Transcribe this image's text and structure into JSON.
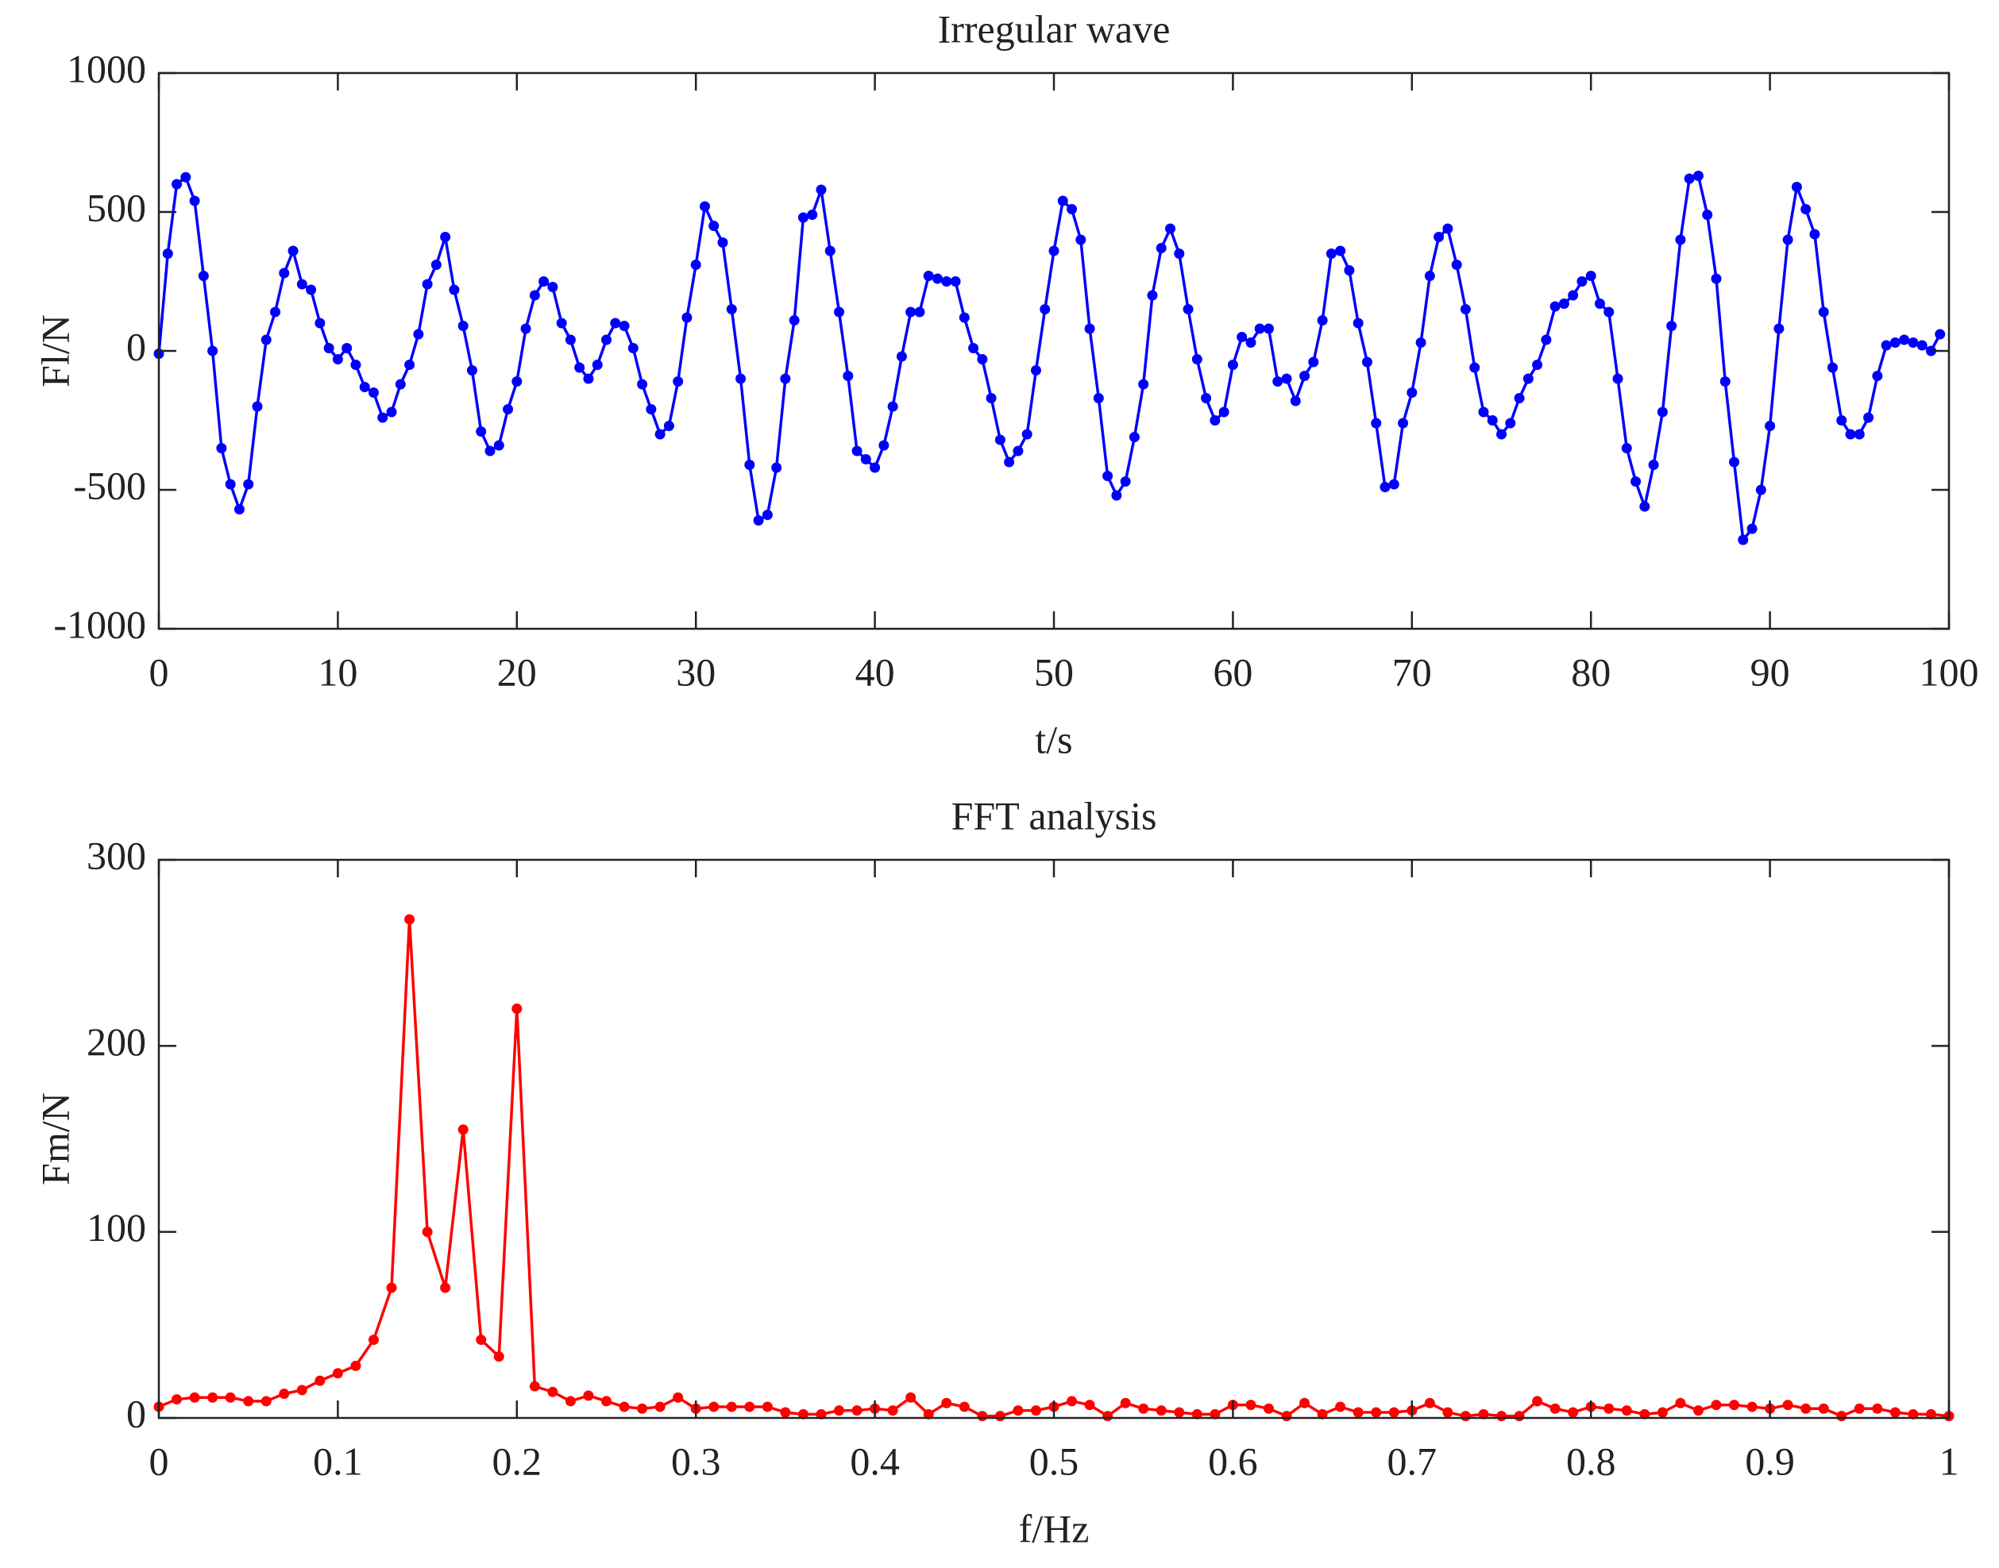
{
  "chart_data": [
    {
      "type": "line",
      "title": "Irregular wave",
      "x_label": "t/s",
      "y_label": "Fl/N",
      "xlim": [
        0,
        100
      ],
      "xticks": [
        0,
        10,
        20,
        30,
        40,
        50,
        60,
        70,
        80,
        90,
        100
      ],
      "ylim": [
        -1000,
        1000
      ],
      "yticks": [
        -1000,
        -500,
        0,
        500,
        1000
      ],
      "grid": false,
      "series": [
        {
          "color": "#0000ff",
          "x": [
            0,
            0.5,
            1,
            1.5,
            2,
            2.5,
            3,
            3.5,
            4,
            4.5,
            5,
            5.5,
            6,
            6.5,
            7,
            7.5,
            8,
            8.5,
            9,
            9.5,
            10,
            10.5,
            11,
            11.5,
            12,
            12.5,
            13,
            13.5,
            14,
            14.5,
            15,
            15.5,
            16,
            16.5,
            17,
            17.5,
            18,
            18.5,
            19,
            19.5,
            20,
            20.5,
            21,
            21.5,
            22,
            22.5,
            23,
            23.5,
            24,
            24.5,
            25,
            25.5,
            26,
            26.5,
            27,
            27.5,
            28,
            28.5,
            29,
            29.5,
            30,
            30.5,
            31,
            31.5,
            32,
            32.5,
            33,
            33.5,
            34,
            34.5,
            35,
            35.5,
            36,
            36.5,
            37,
            37.5,
            38,
            38.5,
            39,
            39.5,
            40,
            40.5,
            41,
            41.5,
            42,
            42.5,
            43,
            43.5,
            44,
            44.5,
            45,
            45.5,
            46,
            46.5,
            47,
            47.5,
            48,
            48.5,
            49,
            49.5,
            50,
            50.5,
            51,
            51.5,
            52,
            52.5,
            53,
            53.5,
            54,
            54.5,
            55,
            55.5,
            56,
            56.5,
            57,
            57.5,
            58,
            58.5,
            59,
            59.5,
            60,
            60.5,
            61,
            61.5,
            62,
            62.5,
            63,
            63.5,
            64,
            64.5,
            65,
            65.5,
            66,
            66.5,
            67,
            67.5,
            68,
            68.5,
            69,
            69.5,
            70,
            70.5,
            71,
            71.5,
            72,
            72.5,
            73,
            73.5,
            74,
            74.5,
            75,
            75.5,
            76,
            76.5,
            77,
            77.5,
            78,
            78.5,
            79,
            79.5,
            80,
            80.5,
            81,
            81.5,
            82,
            82.5,
            83,
            83.5,
            84,
            84.5,
            85,
            85.5,
            86,
            86.5,
            87,
            87.5,
            88,
            88.5,
            89,
            89.5,
            90,
            90.5,
            91,
            91.5,
            92,
            92.5,
            93,
            93.5,
            94,
            94.5,
            95,
            95.5,
            96,
            96.5,
            97,
            97.5,
            98,
            98.5,
            99,
            99.5
          ],
          "values": [
            -10,
            350,
            600,
            625,
            540,
            270,
            0,
            -350,
            -480,
            -570,
            -480,
            -200,
            40,
            140,
            280,
            360,
            240,
            220,
            100,
            10,
            -30,
            10,
            -50,
            -130,
            -150,
            -240,
            -220,
            -120,
            -50,
            60,
            240,
            310,
            410,
            220,
            90,
            -70,
            -290,
            -360,
            -340,
            -210,
            -110,
            80,
            200,
            250,
            230,
            100,
            40,
            -60,
            -100,
            -50,
            40,
            100,
            90,
            10,
            -120,
            -210,
            -300,
            -270,
            -110,
            120,
            310,
            520,
            450,
            390,
            150,
            -100,
            -410,
            -610,
            -590,
            -420,
            -100,
            110,
            480,
            490,
            580,
            360,
            140,
            -90,
            -360,
            -390,
            -420,
            -340,
            -200,
            -20,
            140,
            140,
            270,
            260,
            250,
            250,
            120,
            10,
            -30,
            -170,
            -320,
            -400,
            -360,
            -300,
            -70,
            150,
            360,
            540,
            510,
            400,
            80,
            -170,
            -450,
            -520,
            -470,
            -310,
            -120,
            200,
            370,
            440,
            350,
            150,
            -30,
            -170,
            -250,
            -220,
            -50,
            50,
            30,
            80,
            80,
            -110,
            -100,
            -180,
            -90,
            -40,
            110,
            350,
            360,
            290,
            100,
            -40,
            -260,
            -490,
            -480,
            -260,
            -150,
            30,
            270,
            410,
            440,
            310,
            150,
            -60,
            -220,
            -250,
            -300,
            -260,
            -170,
            -100,
            -50,
            40,
            160,
            170,
            200,
            250,
            270,
            170,
            140,
            -100,
            -350,
            -470,
            -560,
            -410,
            -220,
            90,
            400,
            620,
            630,
            490,
            260,
            -110,
            -400,
            -680,
            -640,
            -500,
            -270,
            80,
            400,
            590,
            510,
            420,
            140,
            -60,
            -250,
            -300,
            -300,
            -240,
            -90,
            20,
            30,
            40,
            30,
            20,
            0,
            60
          ]
        }
      ]
    },
    {
      "type": "line",
      "title": "FFT analysis",
      "x_label": "f/Hz",
      "y_label": "Fm/N",
      "xlim": [
        0,
        1
      ],
      "xticks": [
        0,
        0.1,
        0.2,
        0.3,
        0.4,
        0.5,
        0.6,
        0.7,
        0.8,
        0.9,
        1
      ],
      "ylim": [
        0,
        300
      ],
      "yticks": [
        0,
        100,
        200,
        300
      ],
      "grid": false,
      "series": [
        {
          "color": "#ff0000",
          "x": [
            0,
            0.01,
            0.02,
            0.03,
            0.04,
            0.05,
            0.06,
            0.07,
            0.08,
            0.09,
            0.1,
            0.11,
            0.12,
            0.13,
            0.14,
            0.15,
            0.16,
            0.17,
            0.18,
            0.19,
            0.2,
            0.21,
            0.22,
            0.23,
            0.24,
            0.25,
            0.26,
            0.27,
            0.28,
            0.29,
            0.3,
            0.31,
            0.32,
            0.33,
            0.34,
            0.35,
            0.36,
            0.37,
            0.38,
            0.39,
            0.4,
            0.41,
            0.42,
            0.43,
            0.44,
            0.45,
            0.46,
            0.47,
            0.48,
            0.49,
            0.5,
            0.51,
            0.52,
            0.53,
            0.54,
            0.55,
            0.56,
            0.57,
            0.58,
            0.59,
            0.6,
            0.61,
            0.62,
            0.63,
            0.64,
            0.65,
            0.66,
            0.67,
            0.68,
            0.69,
            0.7,
            0.71,
            0.72,
            0.73,
            0.74,
            0.75,
            0.76,
            0.77,
            0.78,
            0.79,
            0.8,
            0.81,
            0.82,
            0.83,
            0.84,
            0.85,
            0.86,
            0.87,
            0.88,
            0.89,
            0.9,
            0.91,
            0.92,
            0.93,
            0.94,
            0.95,
            0.96,
            0.97,
            0.98,
            0.99,
            1
          ],
          "values": [
            6,
            10,
            11,
            11,
            11,
            9,
            9,
            13,
            15,
            20,
            24,
            28,
            42,
            70,
            268,
            100,
            70,
            155,
            42,
            33,
            220,
            17,
            14,
            9,
            12,
            9,
            6,
            5,
            6,
            11,
            5,
            6,
            6,
            6,
            6,
            3,
            2,
            2,
            4,
            4,
            5,
            4,
            11,
            2,
            8,
            6,
            1,
            1,
            4,
            4,
            6,
            9,
            7,
            1,
            8,
            5,
            4,
            3,
            2,
            2,
            7,
            7,
            5,
            1,
            8,
            2,
            6,
            3,
            3,
            3,
            4,
            8,
            3,
            1,
            2,
            1,
            1,
            9,
            5,
            3,
            6,
            5,
            4,
            2,
            3,
            8,
            4,
            7,
            7,
            6,
            5,
            7,
            5,
            5,
            1,
            5,
            5,
            3,
            2,
            2,
            1
          ]
        }
      ]
    }
  ]
}
